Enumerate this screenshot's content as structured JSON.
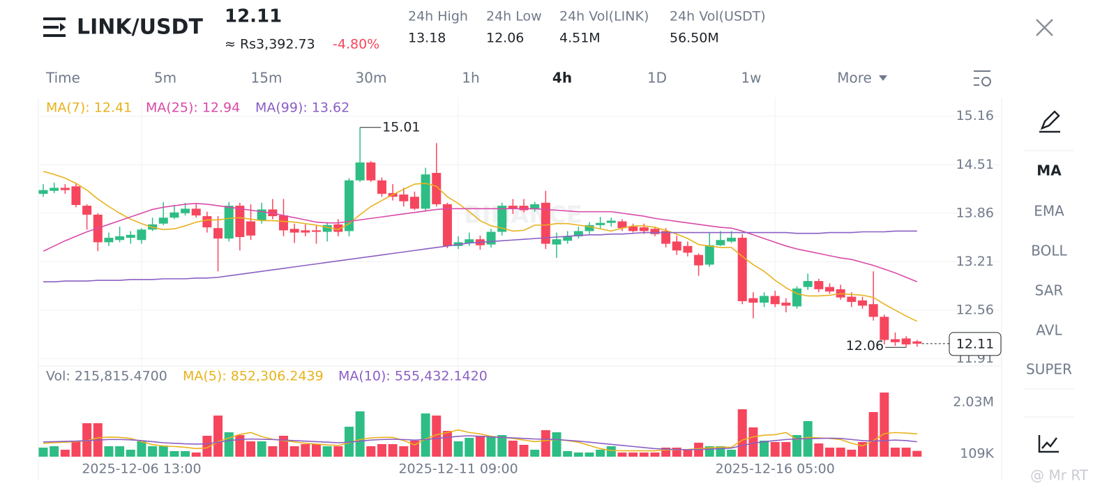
{
  "header": {
    "pair": "LINK/USDT",
    "price": "12.11",
    "approx": "≈ Rs3,392.73",
    "change": "-4.80%",
    "stats": [
      {
        "label": "24h High",
        "value": "13.18"
      },
      {
        "label": "24h Low",
        "value": "12.06"
      },
      {
        "label": "24h Vol(LINK)",
        "value": "4.51M"
      },
      {
        "label": "24h Vol(USDT)",
        "value": "56.50M"
      }
    ]
  },
  "timeframes": [
    "Time",
    "5m",
    "15m",
    "30m",
    "1h",
    "4h",
    "1D",
    "1w",
    "More"
  ],
  "active_timeframe": "4h",
  "indicators": [
    "MA",
    "EMA",
    "BOLL",
    "SAR",
    "AVL",
    "SUPER"
  ],
  "watermark": "BINANCE",
  "credit": "@ Mr RT",
  "chart_data": {
    "type": "candlestick",
    "price_legend": [
      {
        "label": "MA(7): 12.41",
        "color": "#e8b21c"
      },
      {
        "label": "MA(25): 12.94",
        "color": "#d94aa8"
      },
      {
        "label": "MA(99): 13.62",
        "color": "#8a5fc4"
      }
    ],
    "volume_legend": [
      {
        "label": "Vol: 215,815.4700",
        "color": "#707a8a"
      },
      {
        "label": "MA(5): 852,306.2439",
        "color": "#e8b21c"
      },
      {
        "label": "MA(10): 555,432.1420",
        "color": "#8a5fc4"
      }
    ],
    "up_color": "#2ebd85",
    "down_color": "#f6465d",
    "categories": [
      null,
      null,
      null,
      null,
      null,
      null,
      null,
      null,
      null,
      "2025-12-06 13:00",
      null,
      null,
      null,
      null,
      null,
      null,
      null,
      null,
      null,
      null,
      null,
      null,
      null,
      null,
      null,
      null,
      null,
      null,
      null,
      null,
      null,
      null,
      null,
      null,
      null,
      null,
      null,
      null,
      "2025-12-11 09:00",
      null,
      null,
      null,
      null,
      null,
      null,
      null,
      null,
      null,
      null,
      null,
      null,
      null,
      null,
      null,
      null,
      null,
      null,
      null,
      null,
      null,
      null,
      null,
      null,
      null,
      null,
      null,
      null,
      "2025-12-16 05:00",
      null,
      null,
      null,
      null,
      null,
      null,
      null,
      null,
      null,
      null,
      null,
      null,
      null
    ],
    "open": [
      14.12,
      14.16,
      14.2,
      14.22,
      13.96,
      13.84,
      13.47,
      13.5,
      13.53,
      13.5,
      13.64,
      13.72,
      13.8,
      13.86,
      13.92,
      13.82,
      13.66,
      13.52,
      13.96,
      13.75,
      13.76,
      13.91,
      13.83,
      13.65,
      13.63,
      13.63,
      13.61,
      13.71,
      13.62,
      14.3,
      14.54,
      14.3,
      14.13,
      14.11,
      14.08,
      13.92,
      14.4,
      13.98,
      13.42,
      13.46,
      13.51,
      13.44,
      13.61,
      13.96,
      13.96,
      13.91,
      14.0,
      13.44,
      13.49,
      13.55,
      13.62,
      13.7,
      13.73,
      13.75,
      13.68,
      13.67,
      13.65,
      13.62,
      13.48,
      13.42,
      13.3,
      13.17,
      13.43,
      13.48,
      13.53,
      12.72,
      12.66,
      12.75,
      12.66,
      12.61,
      12.87,
      12.95,
      12.87,
      12.84,
      12.74,
      12.69,
      12.64,
      12.47,
      12.17,
      12.18,
      12.14
    ],
    "high": [
      14.25,
      14.27,
      14.25,
      14.26,
      13.98,
      13.86,
      13.6,
      13.68,
      13.62,
      13.66,
      13.8,
      14.01,
      13.97,
      14.0,
      13.98,
      13.88,
      13.82,
      14.01,
      14.0,
      13.98,
      14.0,
      14.05,
      14.05,
      13.72,
      13.71,
      13.7,
      13.74,
      13.78,
      14.33,
      15.01,
      14.56,
      14.34,
      14.25,
      14.2,
      14.15,
      14.47,
      14.8,
      14.0,
      13.55,
      13.6,
      13.56,
      13.65,
      14.0,
      14.05,
      14.05,
      14.01,
      14.16,
      13.6,
      13.62,
      13.68,
      13.74,
      13.81,
      13.8,
      13.78,
      13.72,
      13.72,
      13.68,
      13.66,
      13.56,
      13.48,
      13.32,
      13.6,
      13.62,
      13.62,
      13.58,
      12.8,
      12.8,
      12.82,
      12.72,
      12.88,
      13.05,
      12.98,
      12.92,
      12.9,
      12.8,
      12.74,
      13.08,
      12.5,
      12.26,
      12.21,
      12.16
    ],
    "low": [
      14.08,
      14.13,
      14.12,
      13.94,
      13.64,
      13.35,
      13.42,
      13.47,
      13.45,
      13.45,
      13.62,
      13.7,
      13.78,
      13.83,
      13.8,
      13.6,
      13.08,
      13.48,
      13.36,
      13.5,
      13.72,
      13.78,
      13.55,
      13.46,
      13.55,
      13.45,
      13.48,
      13.55,
      13.55,
      14.28,
      14.28,
      14.08,
      14.03,
      13.95,
      13.9,
      13.88,
      13.95,
      13.39,
      13.38,
      13.42,
      13.37,
      13.4,
      13.56,
      13.85,
      13.87,
      13.88,
      13.38,
      13.26,
      13.45,
      13.52,
      13.58,
      13.65,
      13.68,
      13.62,
      13.6,
      13.58,
      13.55,
      13.4,
      13.3,
      13.28,
      13.02,
      13.14,
      13.42,
      13.46,
      12.64,
      12.45,
      12.6,
      12.6,
      12.53,
      12.58,
      12.83,
      12.8,
      12.78,
      12.7,
      12.6,
      12.58,
      12.42,
      12.1,
      12.08,
      12.06,
      12.07
    ],
    "close": [
      14.17,
      14.2,
      14.17,
      13.97,
      13.84,
      13.47,
      13.53,
      13.55,
      13.57,
      13.64,
      13.71,
      13.8,
      13.87,
      13.92,
      13.83,
      13.67,
      13.52,
      13.96,
      13.54,
      13.56,
      13.91,
      13.82,
      13.63,
      13.6,
      13.6,
      13.61,
      13.7,
      13.61,
      14.3,
      14.54,
      14.3,
      14.12,
      14.08,
      14.02,
      13.92,
      14.38,
      13.98,
      13.42,
      13.47,
      13.51,
      13.43,
      13.61,
      13.96,
      13.92,
      13.9,
      13.98,
      13.45,
      13.51,
      13.55,
      13.62,
      13.7,
      13.73,
      13.76,
      13.66,
      13.62,
      13.62,
      13.58,
      13.45,
      13.36,
      13.33,
      13.16,
      13.43,
      13.5,
      13.53,
      12.68,
      12.66,
      12.75,
      12.64,
      12.62,
      12.85,
      12.95,
      12.84,
      12.81,
      12.73,
      12.67,
      12.62,
      12.47,
      12.16,
      12.13,
      12.1,
      12.11
    ],
    "series": [
      {
        "name": "MA(7)",
        "color": "#e8b21c",
        "values": [
          14.42,
          14.38,
          14.33,
          14.26,
          14.17,
          14.05,
          13.95,
          13.86,
          13.78,
          13.72,
          13.67,
          13.64,
          13.65,
          13.69,
          13.74,
          13.77,
          13.77,
          13.79,
          13.8,
          13.78,
          13.76,
          13.76,
          13.75,
          13.74,
          13.72,
          13.7,
          13.67,
          13.64,
          13.72,
          13.84,
          13.95,
          14.03,
          14.11,
          14.18,
          14.25,
          14.26,
          14.22,
          14.08,
          13.99,
          13.88,
          13.76,
          13.69,
          13.66,
          13.62,
          13.63,
          13.7,
          13.7,
          13.72,
          13.72,
          13.7,
          13.68,
          13.65,
          13.62,
          13.66,
          13.69,
          13.69,
          13.67,
          13.63,
          13.58,
          13.52,
          13.44,
          13.42,
          13.4,
          13.4,
          13.28,
          13.17,
          13.08,
          12.96,
          12.86,
          12.78,
          12.75,
          12.75,
          12.76,
          12.78,
          12.77,
          12.76,
          12.73,
          12.64,
          12.56,
          12.48,
          12.41
        ]
      },
      {
        "name": "MA(25)",
        "color": "#d94aa8",
        "values": [
          13.35,
          13.42,
          13.49,
          13.55,
          13.61,
          13.66,
          13.71,
          13.76,
          13.81,
          13.86,
          13.91,
          13.94,
          13.96,
          13.98,
          13.99,
          13.98,
          13.96,
          13.94,
          13.92,
          13.9,
          13.88,
          13.86,
          13.83,
          13.8,
          13.77,
          13.74,
          13.73,
          13.73,
          13.75,
          13.77,
          13.79,
          13.81,
          13.83,
          13.85,
          13.87,
          13.89,
          13.91,
          13.92,
          13.92,
          13.92,
          13.92,
          13.92,
          13.92,
          13.92,
          13.92,
          13.92,
          13.91,
          13.9,
          13.89,
          13.88,
          13.88,
          13.88,
          13.88,
          13.86,
          13.84,
          13.82,
          13.79,
          13.77,
          13.75,
          13.73,
          13.71,
          13.69,
          13.67,
          13.66,
          13.62,
          13.57,
          13.52,
          13.47,
          13.42,
          13.38,
          13.35,
          13.32,
          13.29,
          13.26,
          13.24,
          13.2,
          13.16,
          13.11,
          13.06,
          13.0,
          12.94
        ]
      },
      {
        "name": "MA(99)",
        "color": "#8a5fc4",
        "values": [
          12.94,
          12.94,
          12.95,
          12.95,
          12.95,
          12.96,
          12.96,
          12.96,
          12.97,
          12.97,
          12.97,
          12.98,
          12.98,
          12.98,
          12.99,
          12.99,
          13.0,
          13.02,
          13.04,
          13.06,
          13.08,
          13.1,
          13.12,
          13.14,
          13.16,
          13.18,
          13.2,
          13.22,
          13.24,
          13.26,
          13.28,
          13.3,
          13.32,
          13.34,
          13.36,
          13.38,
          13.4,
          13.42,
          13.44,
          13.46,
          13.47,
          13.48,
          13.49,
          13.5,
          13.51,
          13.52,
          13.53,
          13.54,
          13.55,
          13.56,
          13.57,
          13.57,
          13.58,
          13.58,
          13.59,
          13.6,
          13.6,
          13.6,
          13.6,
          13.6,
          13.6,
          13.6,
          13.6,
          13.6,
          13.6,
          13.6,
          13.6,
          13.6,
          13.6,
          13.59,
          13.59,
          13.59,
          13.6,
          13.6,
          13.6,
          13.61,
          13.61,
          13.61,
          13.62,
          13.62,
          13.62
        ]
      }
    ],
    "ylim": [
      11.81,
      15.41
    ],
    "yticks": [
      15.16,
      14.51,
      13.86,
      13.21,
      12.56,
      11.91
    ],
    "last_price": 12.11,
    "volume": [
      338000,
      390000,
      260000,
      598000,
      1248000,
      1248000,
      390000,
      390000,
      260000,
      572000,
      390000,
      390000,
      208000,
      208000,
      156000,
      780000,
      1534000,
      910000,
      806000,
      572000,
      572000,
      390000,
      780000,
      390000,
      468000,
      468000,
      390000,
      390000,
      1118000,
      1690000,
      390000,
      468000,
      468000,
      390000,
      598000,
      1612000,
      1534000,
      962000,
      572000,
      702000,
      780000,
      728000,
      806000,
      598000,
      442000,
      260000,
      988000,
      910000,
      208000,
      156000,
      156000,
      260000,
      390000,
      156000,
      156000,
      156000,
      156000,
      338000,
      338000,
      286000,
      520000,
      390000,
      390000,
      260000,
      1768000,
      1092000,
      598000,
      546000,
      546000,
      806000,
      1326000,
      494000,
      338000,
      338000,
      260000,
      546000,
      1664000,
      2392000,
      338000,
      338000,
      215815.47
    ],
    "volume_series": [
      {
        "name": "MA(5)",
        "color": "#e8b21c",
        "values": [
          500000,
          520000,
          540000,
          560000,
          600000,
          700000,
          730000,
          720000,
          680000,
          560000,
          450000,
          400000,
          380000,
          350000,
          300000,
          330000,
          560000,
          700000,
          830000,
          900000,
          750000,
          650000,
          600000,
          550000,
          500000,
          470000,
          440000,
          420000,
          520000,
          640000,
          700000,
          720000,
          720000,
          600000,
          440000,
          660000,
          820000,
          900000,
          1000000,
          900000,
          850000,
          760000,
          720000,
          680000,
          620000,
          560000,
          600000,
          640000,
          600000,
          540000,
          420000,
          300000,
          230000,
          220000,
          220000,
          220000,
          220000,
          250000,
          260000,
          270000,
          300000,
          330000,
          360000,
          350000,
          620000,
          740000,
          800000,
          820000,
          900000,
          640000,
          720000,
          700000,
          680000,
          640000,
          500000,
          400000,
          600000,
          860000,
          900000,
          880000,
          852306.2439
        ]
      },
      {
        "name": "MA(10)",
        "color": "#8a5fc4",
        "values": [
          550000,
          560000,
          570000,
          580000,
          600000,
          620000,
          640000,
          640000,
          630000,
          600000,
          560000,
          520000,
          500000,
          480000,
          470000,
          480000,
          540000,
          600000,
          640000,
          660000,
          650000,
          640000,
          620000,
          600000,
          580000,
          560000,
          540000,
          520000,
          540000,
          580000,
          620000,
          640000,
          650000,
          640000,
          620000,
          640000,
          680000,
          720000,
          760000,
          780000,
          760000,
          740000,
          720000,
          700000,
          680000,
          660000,
          650000,
          640000,
          610000,
          580000,
          540000,
          500000,
          460000,
          420000,
          380000,
          340000,
          300000,
          280000,
          270000,
          260000,
          270000,
          280000,
          300000,
          320000,
          420000,
          500000,
          560000,
          600000,
          640000,
          660000,
          670000,
          680000,
          690000,
          680000,
          640000,
          600000,
          580000,
          600000,
          620000,
          600000,
          555432.142
        ]
      }
    ],
    "volume_ylim": [
      0,
      3250000
    ],
    "volume_yticks": [
      {
        "value": 2030000,
        "label": "2.03M"
      },
      {
        "value": 109000,
        "label": "109K"
      }
    ],
    "grid": true
  }
}
